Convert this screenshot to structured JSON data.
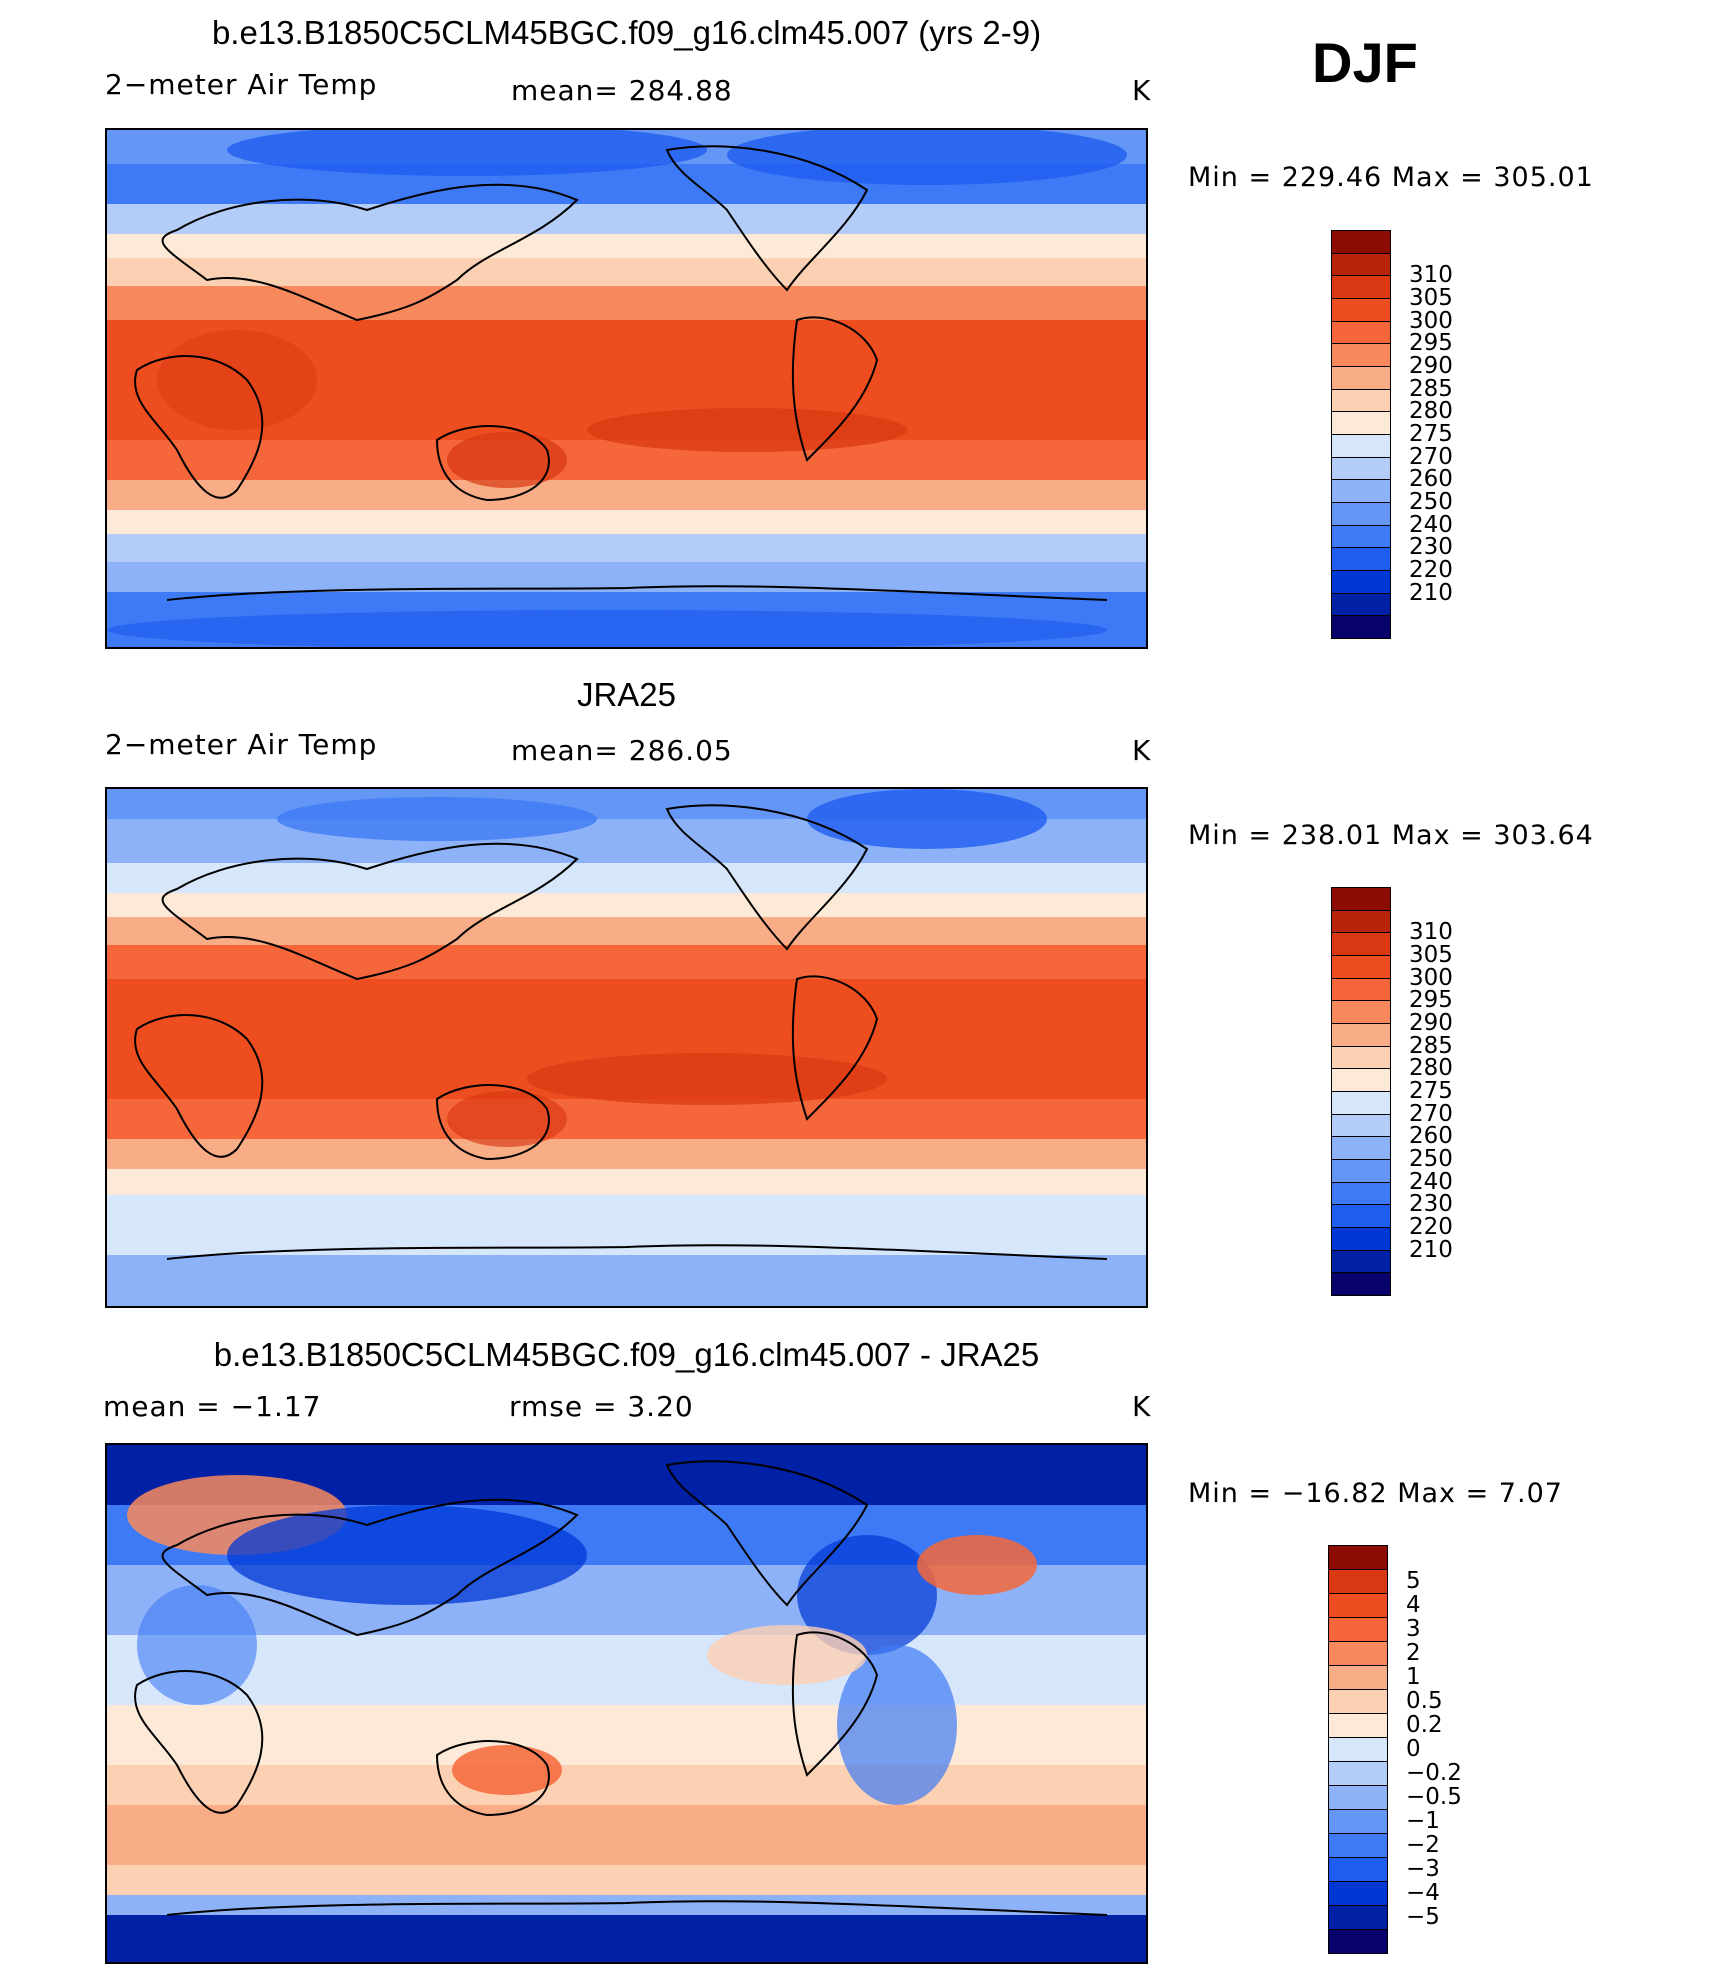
{
  "season": "DJF",
  "palette_temp": [
    "#08006b",
    "#0020a5",
    "#0038d6",
    "#1f5cf0",
    "#3e7af5",
    "#6496f6",
    "#8eb2f8",
    "#b4cdf8",
    "#d6e6fb",
    "#fde9d8",
    "#fcd0b3",
    "#f9ad86",
    "#f7895d",
    "#f5673a",
    "#ee4e1f",
    "#d93812",
    "#b7240b",
    "#8c0c04"
  ],
  "palette_diff": [
    "#08006b",
    "#0020a5",
    "#0038d6",
    "#1f5cf0",
    "#3e7af5",
    "#6496f6",
    "#8eb2f8",
    "#b4cdf8",
    "#d6e6fb",
    "#fde9d8",
    "#fcd0b3",
    "#f9ad86",
    "#f7895d",
    "#f5673a",
    "#ee4e1f",
    "#d93812",
    "#8c0c04"
  ],
  "panels": [
    {
      "title": "b.e13.B1850C5CLM45BGC.f09_g16.clm45.007 (yrs 2-9)",
      "variable": "2−meter Air Temp",
      "stat_text": "mean=  284.88",
      "units": "K",
      "minmax_text": "Min  =  229.46  Max  =  305.01",
      "colorbar_labels": [
        "310",
        "305",
        "300",
        "295",
        "290",
        "285",
        "280",
        "275",
        "270",
        "260",
        "250",
        "240",
        "230",
        "220",
        "210"
      ]
    },
    {
      "title": "JRA25",
      "variable": "2−meter Air Temp",
      "stat_text": "mean=  286.05",
      "units": "K",
      "minmax_text": "Min  =  238.01  Max  =  303.64",
      "colorbar_labels": [
        "310",
        "305",
        "300",
        "295",
        "290",
        "285",
        "280",
        "275",
        "270",
        "260",
        "250",
        "240",
        "230",
        "220",
        "210"
      ]
    },
    {
      "title": "b.e13.B1850C5CLM45BGC.f09_g16.clm45.007 - JRA25",
      "stat_left_text": "mean  =    −1.17",
      "stat_text": "rmse  =     3.20",
      "units": "K",
      "minmax_text": "Min  =  −16.82  Max  =      7.07",
      "colorbar_labels": [
        "5",
        "4",
        "3",
        "2",
        "1",
        "0.5",
        "0.2",
        "0",
        "−0.2",
        "−0.5",
        "−1",
        "−2",
        "−3",
        "−4",
        "−5"
      ]
    }
  ]
}
